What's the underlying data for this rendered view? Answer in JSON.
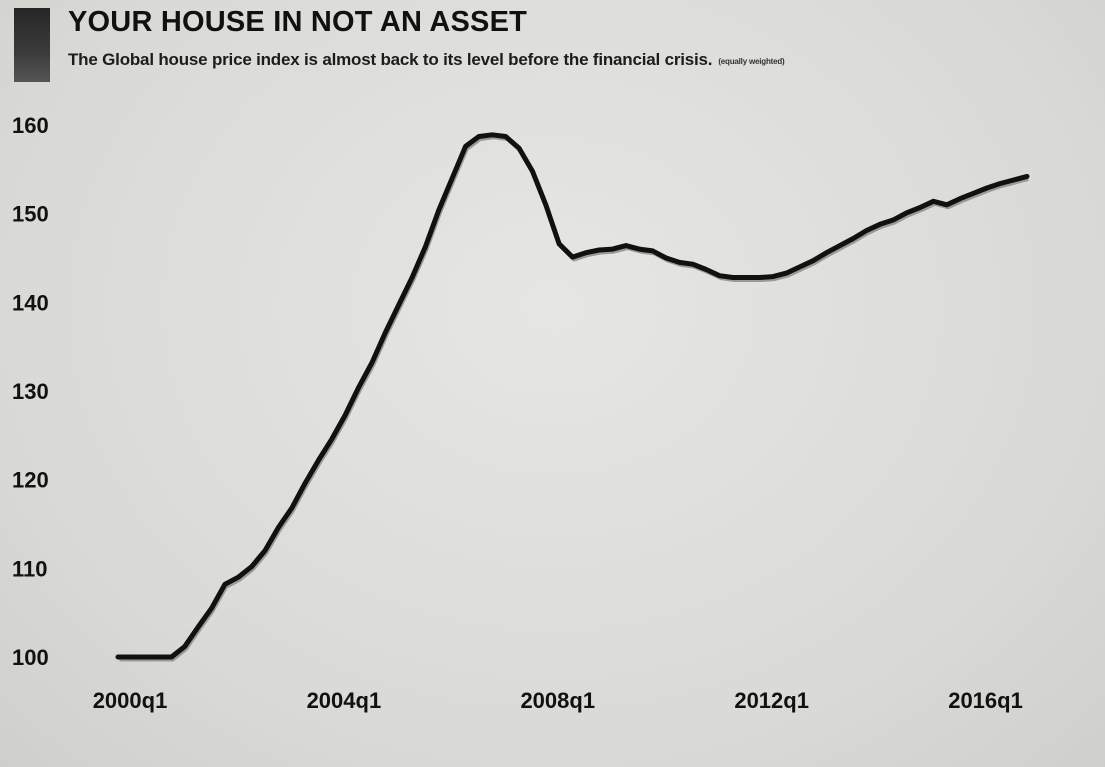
{
  "chart_data": {
    "type": "line",
    "title": "YOUR HOUSE IN NOT AN ASSET",
    "subtitle": "The Global house price index is almost back to its level before the financial crisis.",
    "note": "(equally weighted)",
    "xlabel": "",
    "ylabel": "",
    "ylim": [
      100,
      160
    ],
    "yticks": [
      100,
      110,
      120,
      130,
      140,
      150,
      160
    ],
    "xticks": [
      "2000q1",
      "2004q1",
      "2008q1",
      "2012q1",
      "2016q1"
    ],
    "grid": false,
    "line_color": "#111111",
    "series": [
      {
        "x": [
          "2000q1",
          "2000q2",
          "2000q3",
          "2000q4",
          "2001q1",
          "2001q2",
          "2001q3",
          "2001q4",
          "2002q1",
          "2002q2",
          "2002q3",
          "2002q4",
          "2003q1",
          "2003q2",
          "2003q3",
          "2003q4",
          "2004q1",
          "2004q2",
          "2004q3",
          "2004q4",
          "2005q1",
          "2005q2",
          "2005q3",
          "2005q4",
          "2006q1",
          "2006q2",
          "2006q3",
          "2006q4",
          "2007q1",
          "2007q2",
          "2007q3",
          "2007q4",
          "2008q1",
          "2008q2",
          "2008q3",
          "2008q4",
          "2009q1",
          "2009q2",
          "2009q3",
          "2009q4",
          "2010q1",
          "2010q2",
          "2010q3",
          "2010q4",
          "2011q1",
          "2011q2",
          "2011q3",
          "2011q4",
          "2012q1",
          "2012q2",
          "2012q3",
          "2012q4",
          "2013q1",
          "2013q2",
          "2013q3",
          "2013q4",
          "2014q1",
          "2014q2",
          "2014q3",
          "2014q4",
          "2015q1",
          "2015q2",
          "2015q3",
          "2015q4",
          "2016q1",
          "2016q2",
          "2016q3",
          "2016q4",
          "2017q1"
        ],
        "values": [
          100.0,
          100.0,
          100.0,
          100.0,
          100.0,
          101.2,
          103.4,
          105.5,
          108.2,
          109.0,
          110.2,
          112.0,
          114.6,
          116.8,
          119.6,
          122.2,
          124.6,
          127.3,
          130.4,
          133.2,
          136.6,
          139.7,
          142.8,
          146.3,
          150.4,
          154.0,
          157.6,
          158.7,
          158.9,
          158.7,
          157.4,
          154.8,
          151.0,
          146.6,
          145.1,
          145.6,
          145.9,
          146.0,
          146.4,
          146.0,
          145.8,
          145.0,
          144.5,
          144.3,
          143.7,
          143.0,
          142.8,
          142.8,
          142.8,
          142.9,
          143.3,
          144.0,
          144.7,
          145.6,
          146.4,
          147.2,
          148.1,
          148.8,
          149.3,
          150.1,
          150.7,
          151.4,
          151.0,
          151.7,
          152.3,
          152.9,
          153.4,
          153.8,
          154.2
        ]
      }
    ]
  }
}
